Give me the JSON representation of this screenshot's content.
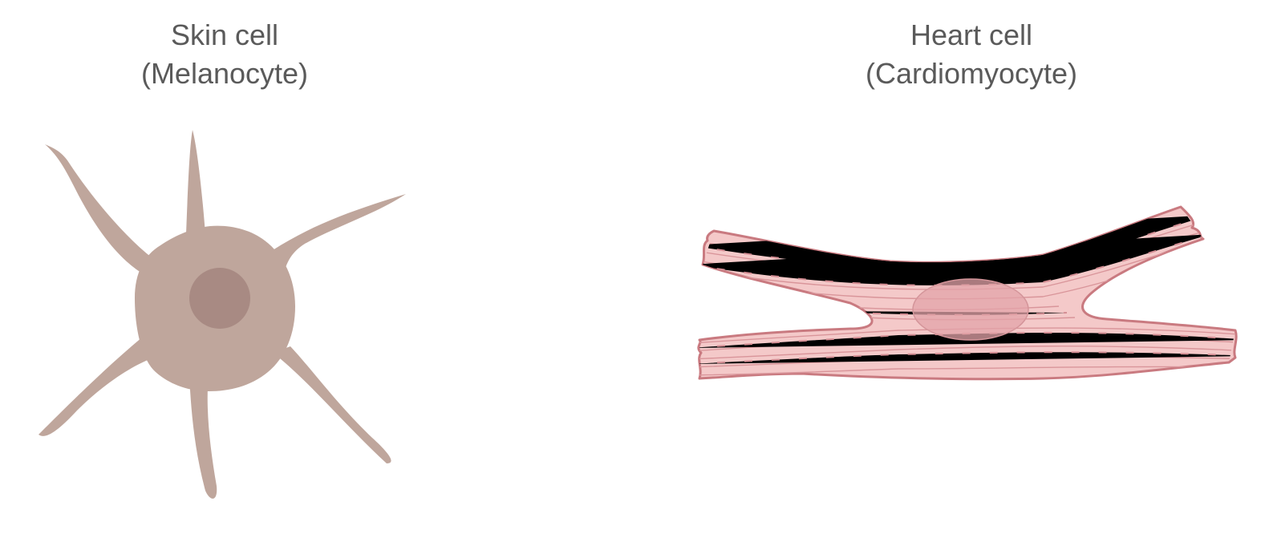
{
  "skin_cell": {
    "title": "Skin cell",
    "subtitle": "(Melanocyte)",
    "body_color": "#bfa69c",
    "nucleus_color": "#a88a83"
  },
  "heart_cell": {
    "title": "Heart cell",
    "subtitle": "(Cardiomyocyte)",
    "fill_color": "#f4c9c9",
    "outline_color": "#c97a80",
    "striation_color": "#d9959a",
    "nucleus_color": "#e3a3a8"
  }
}
